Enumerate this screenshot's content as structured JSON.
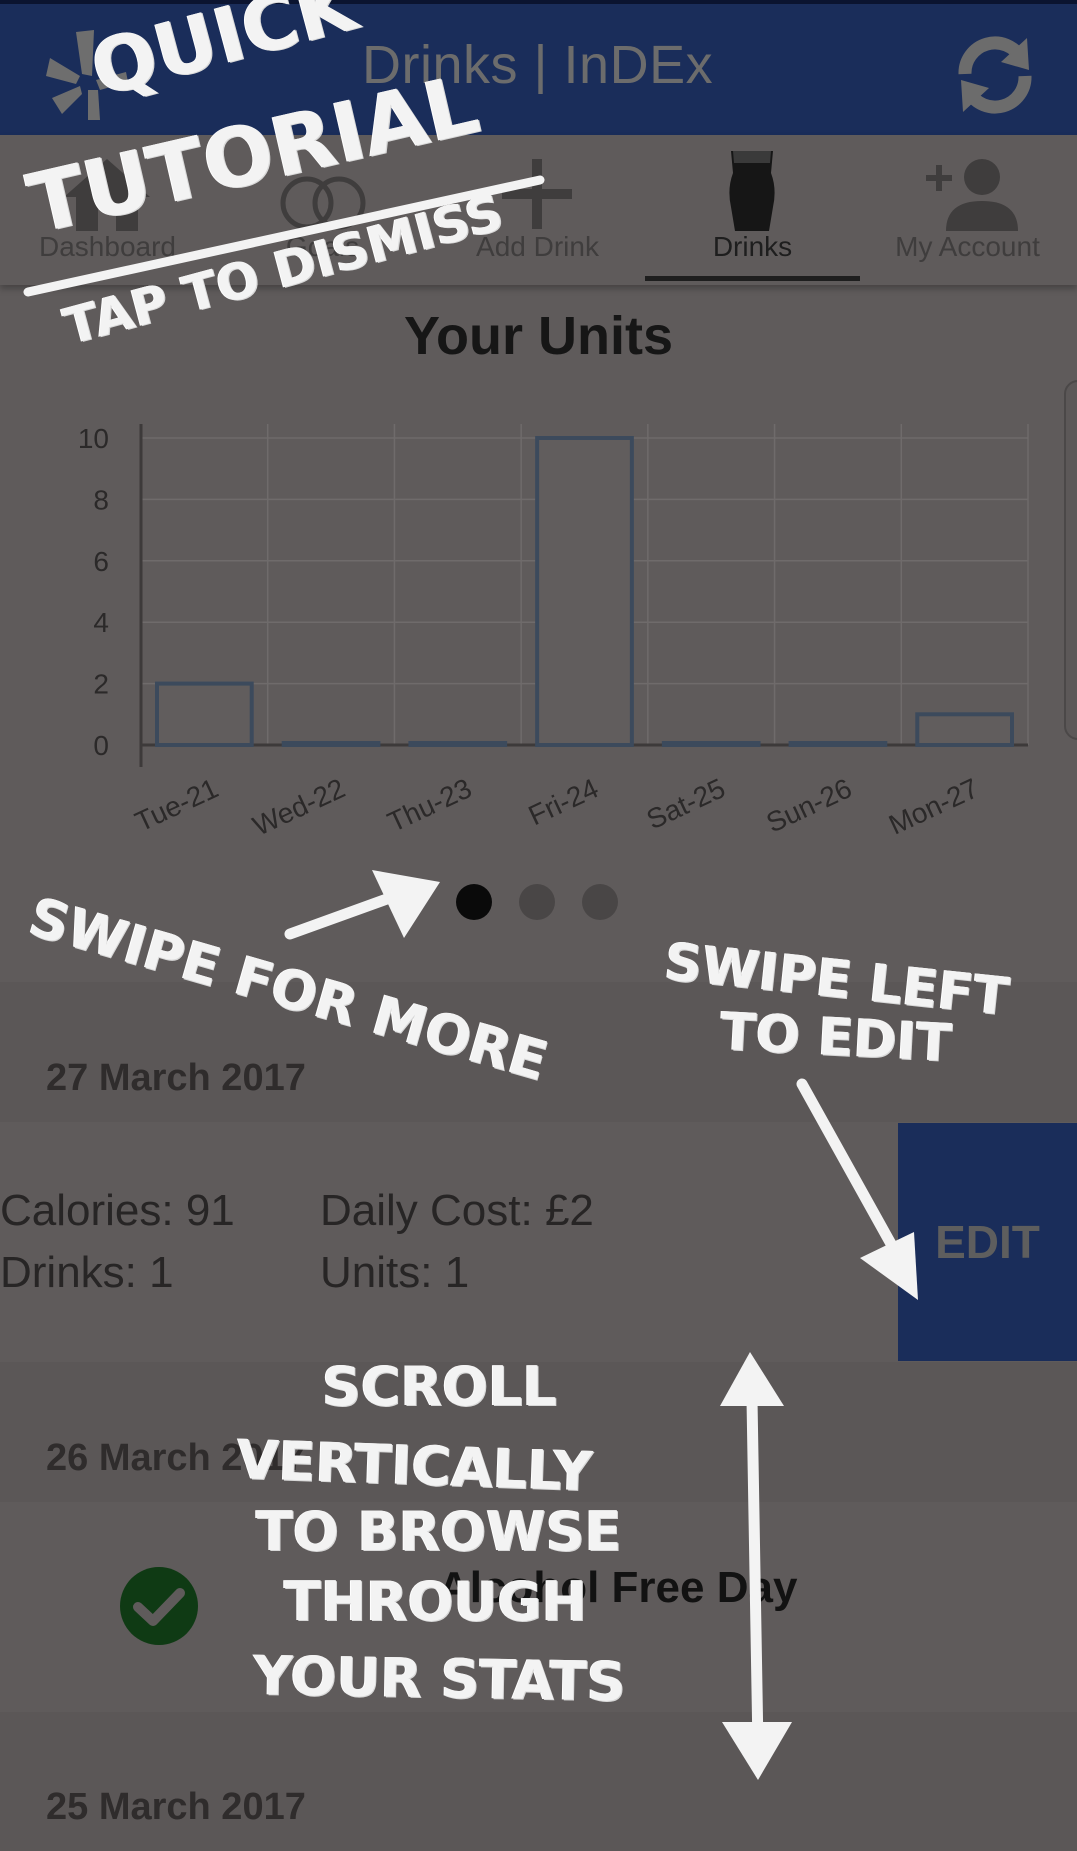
{
  "header": {
    "title": "Drinks | InDEx",
    "logo_icon": "yelp-burst-icon",
    "refresh_icon": "refresh-icon",
    "bg_color": "#1a2d5a"
  },
  "tabs": [
    {
      "label": "Dashboard",
      "icon": "home-icon",
      "active": false
    },
    {
      "label": "Goals",
      "icon": "goals-icon",
      "active": false
    },
    {
      "label": "Add Drink",
      "icon": "add-icon",
      "active": false
    },
    {
      "label": "Drinks",
      "icon": "pint-glass-icon",
      "active": true
    },
    {
      "label": "My Account",
      "icon": "add-person-icon",
      "active": false
    }
  ],
  "chart_title": "Your Units",
  "chart_data": {
    "type": "bar",
    "title": "Your Units",
    "categories": [
      "Tue-21",
      "Wed-22",
      "Thu-23",
      "Fri-24",
      "Sat-25",
      "Sun-26",
      "Mon-27"
    ],
    "values": [
      2,
      0,
      0,
      10,
      0,
      0,
      1
    ],
    "ylim": [
      0,
      10
    ],
    "yticks": [
      0,
      2,
      4,
      6,
      8,
      10
    ],
    "grid": true,
    "xlabel": "",
    "ylabel": ""
  },
  "pager": {
    "count": 3,
    "active_index": 0
  },
  "days": {
    "day1": {
      "date": "27 March 2017",
      "calories": "Calories: 91",
      "daily_cost": "Daily Cost: £2",
      "drinks": "Drinks: 1",
      "units": "Units: 1",
      "edit_label": "EDIT"
    },
    "day2": {
      "date": "26 March 2017",
      "status": "Alcohol Free Day",
      "status_icon": "check-circle-icon"
    },
    "day3": {
      "date": "25 March 2017"
    }
  },
  "tutorial": {
    "quick": "QUICK",
    "tutorial": "TUTORIAL",
    "dismiss": "TAP TO DISMISS",
    "swipe_more": "SWIPE FOR MORE",
    "swipe_left_1": "SWIPE LEFT",
    "swipe_left_2": "TO EDIT",
    "scroll_1": "SCROLL",
    "scroll_2": "VERTICALLY",
    "scroll_3": "TO BROWSE",
    "scroll_4": "THROUGH",
    "scroll_5": "YOUR STATS"
  }
}
